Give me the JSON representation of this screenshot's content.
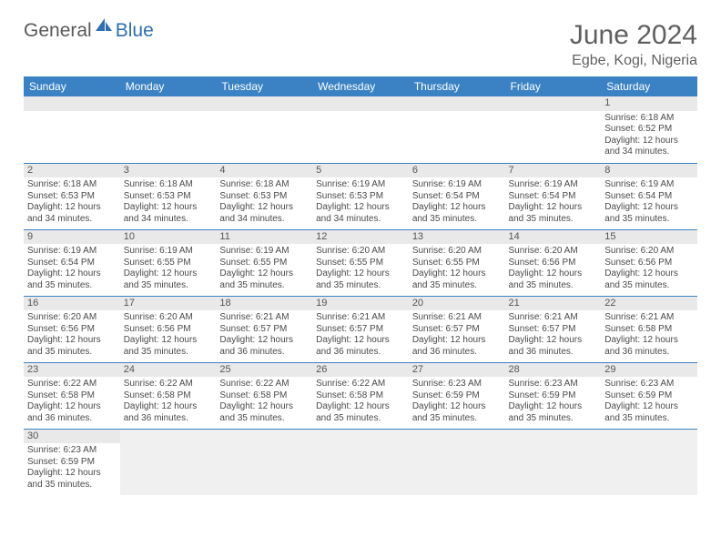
{
  "brand": {
    "part1": "General",
    "part2": "Blue",
    "sail_color": "#2f6fb0"
  },
  "title": "June 2024",
  "location": "Egbe, Kogi, Nigeria",
  "colors": {
    "header_bg": "#3b82c4",
    "header_fg": "#ffffff",
    "rule": "#3b82c4",
    "daynum_bg": "#e9e9e9",
    "text": "#4a4a4a"
  },
  "weekdays": [
    "Sunday",
    "Monday",
    "Tuesday",
    "Wednesday",
    "Thursday",
    "Friday",
    "Saturday"
  ],
  "weeks": [
    [
      null,
      null,
      null,
      null,
      null,
      null,
      {
        "n": "1",
        "sr": "Sunrise: 6:18 AM",
        "ss": "Sunset: 6:52 PM",
        "dl": "Daylight: 12 hours and 34 minutes."
      }
    ],
    [
      {
        "n": "2",
        "sr": "Sunrise: 6:18 AM",
        "ss": "Sunset: 6:53 PM",
        "dl": "Daylight: 12 hours and 34 minutes."
      },
      {
        "n": "3",
        "sr": "Sunrise: 6:18 AM",
        "ss": "Sunset: 6:53 PM",
        "dl": "Daylight: 12 hours and 34 minutes."
      },
      {
        "n": "4",
        "sr": "Sunrise: 6:18 AM",
        "ss": "Sunset: 6:53 PM",
        "dl": "Daylight: 12 hours and 34 minutes."
      },
      {
        "n": "5",
        "sr": "Sunrise: 6:19 AM",
        "ss": "Sunset: 6:53 PM",
        "dl": "Daylight: 12 hours and 34 minutes."
      },
      {
        "n": "6",
        "sr": "Sunrise: 6:19 AM",
        "ss": "Sunset: 6:54 PM",
        "dl": "Daylight: 12 hours and 35 minutes."
      },
      {
        "n": "7",
        "sr": "Sunrise: 6:19 AM",
        "ss": "Sunset: 6:54 PM",
        "dl": "Daylight: 12 hours and 35 minutes."
      },
      {
        "n": "8",
        "sr": "Sunrise: 6:19 AM",
        "ss": "Sunset: 6:54 PM",
        "dl": "Daylight: 12 hours and 35 minutes."
      }
    ],
    [
      {
        "n": "9",
        "sr": "Sunrise: 6:19 AM",
        "ss": "Sunset: 6:54 PM",
        "dl": "Daylight: 12 hours and 35 minutes."
      },
      {
        "n": "10",
        "sr": "Sunrise: 6:19 AM",
        "ss": "Sunset: 6:55 PM",
        "dl": "Daylight: 12 hours and 35 minutes."
      },
      {
        "n": "11",
        "sr": "Sunrise: 6:19 AM",
        "ss": "Sunset: 6:55 PM",
        "dl": "Daylight: 12 hours and 35 minutes."
      },
      {
        "n": "12",
        "sr": "Sunrise: 6:20 AM",
        "ss": "Sunset: 6:55 PM",
        "dl": "Daylight: 12 hours and 35 minutes."
      },
      {
        "n": "13",
        "sr": "Sunrise: 6:20 AM",
        "ss": "Sunset: 6:55 PM",
        "dl": "Daylight: 12 hours and 35 minutes."
      },
      {
        "n": "14",
        "sr": "Sunrise: 6:20 AM",
        "ss": "Sunset: 6:56 PM",
        "dl": "Daylight: 12 hours and 35 minutes."
      },
      {
        "n": "15",
        "sr": "Sunrise: 6:20 AM",
        "ss": "Sunset: 6:56 PM",
        "dl": "Daylight: 12 hours and 35 minutes."
      }
    ],
    [
      {
        "n": "16",
        "sr": "Sunrise: 6:20 AM",
        "ss": "Sunset: 6:56 PM",
        "dl": "Daylight: 12 hours and 35 minutes."
      },
      {
        "n": "17",
        "sr": "Sunrise: 6:20 AM",
        "ss": "Sunset: 6:56 PM",
        "dl": "Daylight: 12 hours and 35 minutes."
      },
      {
        "n": "18",
        "sr": "Sunrise: 6:21 AM",
        "ss": "Sunset: 6:57 PM",
        "dl": "Daylight: 12 hours and 36 minutes."
      },
      {
        "n": "19",
        "sr": "Sunrise: 6:21 AM",
        "ss": "Sunset: 6:57 PM",
        "dl": "Daylight: 12 hours and 36 minutes."
      },
      {
        "n": "20",
        "sr": "Sunrise: 6:21 AM",
        "ss": "Sunset: 6:57 PM",
        "dl": "Daylight: 12 hours and 36 minutes."
      },
      {
        "n": "21",
        "sr": "Sunrise: 6:21 AM",
        "ss": "Sunset: 6:57 PM",
        "dl": "Daylight: 12 hours and 36 minutes."
      },
      {
        "n": "22",
        "sr": "Sunrise: 6:21 AM",
        "ss": "Sunset: 6:58 PM",
        "dl": "Daylight: 12 hours and 36 minutes."
      }
    ],
    [
      {
        "n": "23",
        "sr": "Sunrise: 6:22 AM",
        "ss": "Sunset: 6:58 PM",
        "dl": "Daylight: 12 hours and 36 minutes."
      },
      {
        "n": "24",
        "sr": "Sunrise: 6:22 AM",
        "ss": "Sunset: 6:58 PM",
        "dl": "Daylight: 12 hours and 36 minutes."
      },
      {
        "n": "25",
        "sr": "Sunrise: 6:22 AM",
        "ss": "Sunset: 6:58 PM",
        "dl": "Daylight: 12 hours and 35 minutes."
      },
      {
        "n": "26",
        "sr": "Sunrise: 6:22 AM",
        "ss": "Sunset: 6:58 PM",
        "dl": "Daylight: 12 hours and 35 minutes."
      },
      {
        "n": "27",
        "sr": "Sunrise: 6:23 AM",
        "ss": "Sunset: 6:59 PM",
        "dl": "Daylight: 12 hours and 35 minutes."
      },
      {
        "n": "28",
        "sr": "Sunrise: 6:23 AM",
        "ss": "Sunset: 6:59 PM",
        "dl": "Daylight: 12 hours and 35 minutes."
      },
      {
        "n": "29",
        "sr": "Sunrise: 6:23 AM",
        "ss": "Sunset: 6:59 PM",
        "dl": "Daylight: 12 hours and 35 minutes."
      }
    ],
    [
      {
        "n": "30",
        "sr": "Sunrise: 6:23 AM",
        "ss": "Sunset: 6:59 PM",
        "dl": "Daylight: 12 hours and 35 minutes."
      },
      null,
      null,
      null,
      null,
      null,
      null
    ]
  ]
}
